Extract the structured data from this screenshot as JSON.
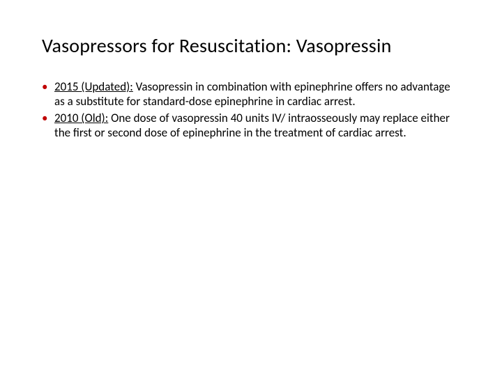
{
  "slide": {
    "title": "Vasopressors for Resuscitation: Vasopressin",
    "title_color": "#000000",
    "title_fontsize": 28,
    "background_color": "#ffffff",
    "bullet_marker_color": "#c00000",
    "body_fontsize": 17,
    "body_color": "#000000",
    "bullets": [
      {
        "label": "2015 (Updated):",
        "text": " Vasopressin in combination with epinephrine offers no advantage as a substitute for standard-dose epinephrine in cardiac arrest."
      },
      {
        "label": " 2010 (Old):",
        "text": " One dose of vasopressin 40 units IV/ intraosseously may replace either the first or second dose of epinephrine in the treatment of cardiac arrest."
      }
    ]
  }
}
